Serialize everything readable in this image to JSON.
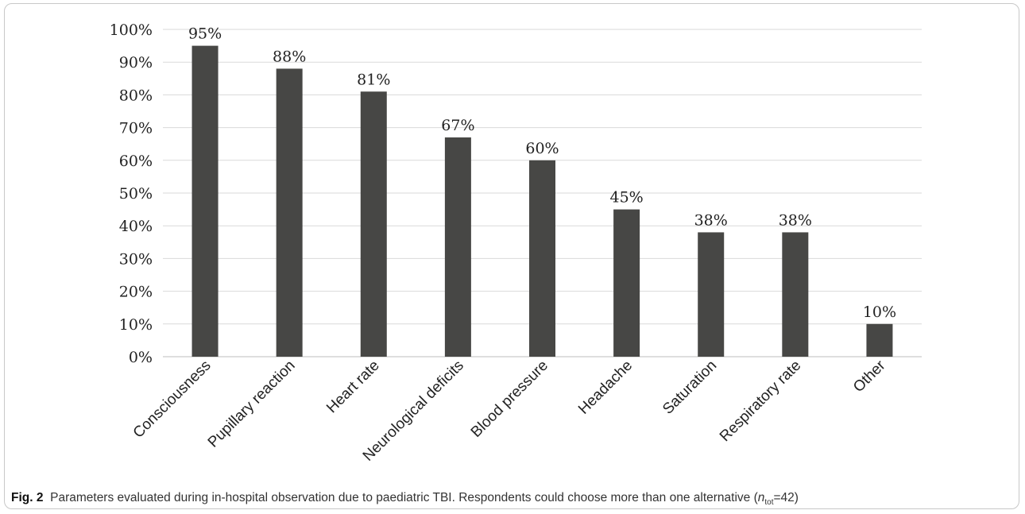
{
  "chart_data": {
    "type": "bar",
    "categories": [
      "Consciousness",
      "Pupillary reaction",
      "Heart rate",
      "Neurological deficits",
      "Blood pressure",
      "Headache",
      "Saturation",
      "Respiratory rate",
      "Other"
    ],
    "values": [
      95,
      88,
      81,
      67,
      60,
      45,
      38,
      38,
      10
    ],
    "data_labels": [
      "95%",
      "88%",
      "81%",
      "67%",
      "60%",
      "45%",
      "38%",
      "38%",
      "10%"
    ],
    "ylim": [
      0,
      100
    ],
    "yticks": [
      "0%",
      "10%",
      "20%",
      "30%",
      "40%",
      "50%",
      "60%",
      "70%",
      "80%",
      "90%",
      "100%"
    ],
    "title": "",
    "xlabel": "",
    "ylabel": "",
    "grid": true,
    "bar_color": "#474745"
  },
  "caption": {
    "fig_label": "Fig. 2",
    "text": "Parameters evaluated during in-hospital observation due to paediatric TBI. Respondents could choose more than one alternative (",
    "n_symbol": "n",
    "n_subscript": "tot",
    "n_value": "=42)"
  }
}
